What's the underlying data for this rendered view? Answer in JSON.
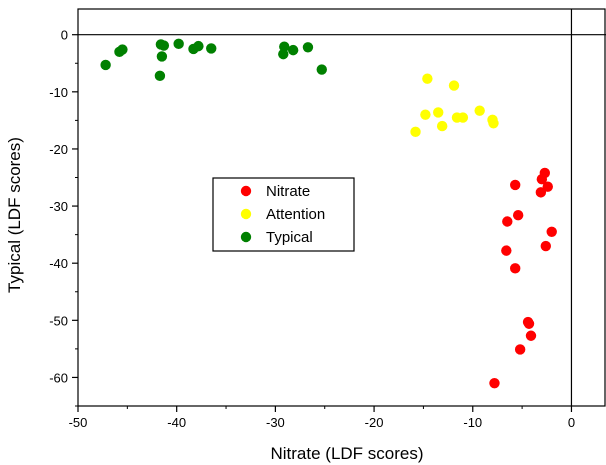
{
  "chart_data": {
    "type": "scatter",
    "xlabel": "Nitrate (LDF scores)",
    "ylabel": "Typical (LDF scores)",
    "xlim": [
      -50,
      3.5
    ],
    "ylim": [
      -65,
      4.5
    ],
    "x_ticks": [
      -50,
      -40,
      -30,
      -20,
      -10,
      0
    ],
    "y_ticks": [
      0,
      -10,
      -20,
      -30,
      -40,
      -50,
      -60
    ],
    "x_tick_labels": [
      "-50",
      "-40",
      "-30",
      "-20",
      "-10",
      "0"
    ],
    "y_tick_labels": [
      "0",
      "-10",
      "-20",
      "-30",
      "-40",
      "-50",
      "-60"
    ],
    "reference_lines": {
      "x": 0,
      "y": 0
    },
    "legend_position": "center-left",
    "grid": false,
    "series": [
      {
        "name": "Nitrate",
        "color": "#ff0000",
        "points": [
          [
            -2.7,
            -24.2
          ],
          [
            -3.0,
            -25.3
          ],
          [
            -2.4,
            -26.6
          ],
          [
            -5.7,
            -26.3
          ],
          [
            -3.1,
            -27.6
          ],
          [
            -6.5,
            -32.7
          ],
          [
            -5.4,
            -31.6
          ],
          [
            -2.0,
            -34.5
          ],
          [
            -6.6,
            -37.8
          ],
          [
            -2.6,
            -37.0
          ],
          [
            -5.7,
            -40.9
          ],
          [
            -4.4,
            -50.3
          ],
          [
            -4.3,
            -50.6
          ],
          [
            -4.1,
            -52.7
          ],
          [
            -5.2,
            -55.1
          ],
          [
            -7.8,
            -61.0
          ]
        ]
      },
      {
        "name": "Attention",
        "color": "#ffff00",
        "points": [
          [
            -14.6,
            -7.7
          ],
          [
            -11.9,
            -8.9
          ],
          [
            -9.3,
            -13.3
          ],
          [
            -13.5,
            -13.6
          ],
          [
            -14.8,
            -14.0
          ],
          [
            -11.6,
            -14.5
          ],
          [
            -11.0,
            -14.5
          ],
          [
            -8.0,
            -14.9
          ],
          [
            -7.9,
            -15.5
          ],
          [
            -13.1,
            -16.0
          ],
          [
            -15.8,
            -17.0
          ]
        ]
      },
      {
        "name": "Typical",
        "color": "#008000",
        "points": [
          [
            -47.2,
            -5.3
          ],
          [
            -45.8,
            -3.0
          ],
          [
            -45.5,
            -2.6
          ],
          [
            -41.6,
            -1.7
          ],
          [
            -41.3,
            -1.9
          ],
          [
            -39.8,
            -1.6
          ],
          [
            -38.3,
            -2.5
          ],
          [
            -37.8,
            -2.0
          ],
          [
            -36.5,
            -2.4
          ],
          [
            -41.5,
            -3.8
          ],
          [
            -41.7,
            -7.2
          ],
          [
            -29.1,
            -2.1
          ],
          [
            -28.2,
            -2.7
          ],
          [
            -26.7,
            -2.2
          ],
          [
            -29.2,
            -3.4
          ],
          [
            -25.3,
            -6.1
          ]
        ]
      }
    ]
  }
}
